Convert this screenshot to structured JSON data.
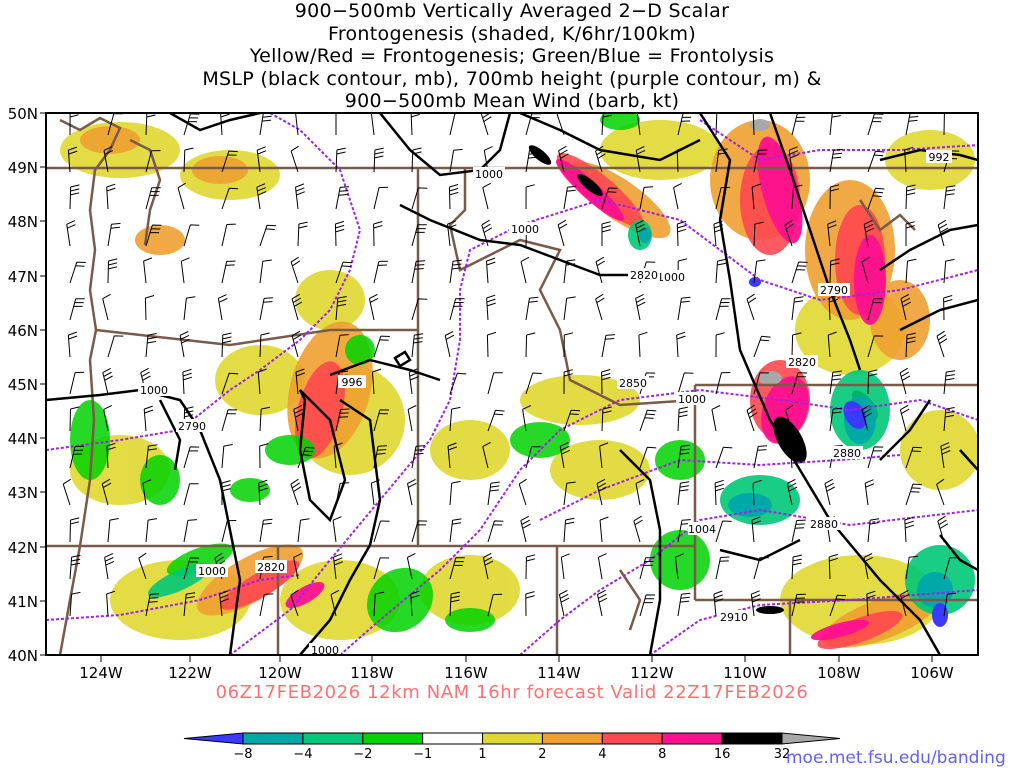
{
  "title_lines": [
    "900−500mb Vertically Averaged 2−D Scalar",
    "Frontogenesis (shaded, K/6hr/100km)",
    "Yellow/Red = Frontogenesis;  Green/Blue = Frontolysis",
    "MSLP (black contour, mb), 700mb height (purple contour, m) &",
    "900−500mb Mean Wind (barb, kt)"
  ],
  "lat_labels": [
    "50N",
    "49N",
    "48N",
    "47N",
    "46N",
    "45N",
    "44N",
    "43N",
    "42N",
    "41N",
    "40N"
  ],
  "lon_labels": [
    "124W",
    "122W",
    "120W",
    "118W",
    "116W",
    "114W",
    "112W",
    "110W",
    "108W",
    "106W"
  ],
  "contour_labels": {
    "mslp": [
      "1000",
      "1000",
      "1000",
      "1000",
      "1000",
      "1000",
      "1000",
      "996",
      "992",
      "1004"
    ],
    "height_700mb": [
      "2820",
      "2790",
      "2850",
      "2820",
      "2880",
      "2880",
      "2790",
      "2820",
      "2910"
    ]
  },
  "valid_line": "06Z17FEB2026 12km NAM 16hr forecast Valid 22Z17FEB2026",
  "colorbar": {
    "ticks": [
      "−8",
      "−4",
      "−2",
      "−1",
      "1",
      "2",
      "4",
      "8",
      "16",
      "32"
    ],
    "colors": [
      "#3a3aff",
      "#00a8a8",
      "#00c878",
      "#00d200",
      "#ffffff",
      "#e0d830",
      "#f0a030",
      "#ff4850",
      "#ff1090",
      "#000000",
      "#a8a8a8"
    ]
  },
  "credit": "moe.met.fsu.edu/banding",
  "colors": {
    "mslp_contour": "#000000",
    "height_contour": "#a020f0",
    "borders": "#7a5a48",
    "valid_text": "#ff7070",
    "credit_text": "#6060ff"
  }
}
